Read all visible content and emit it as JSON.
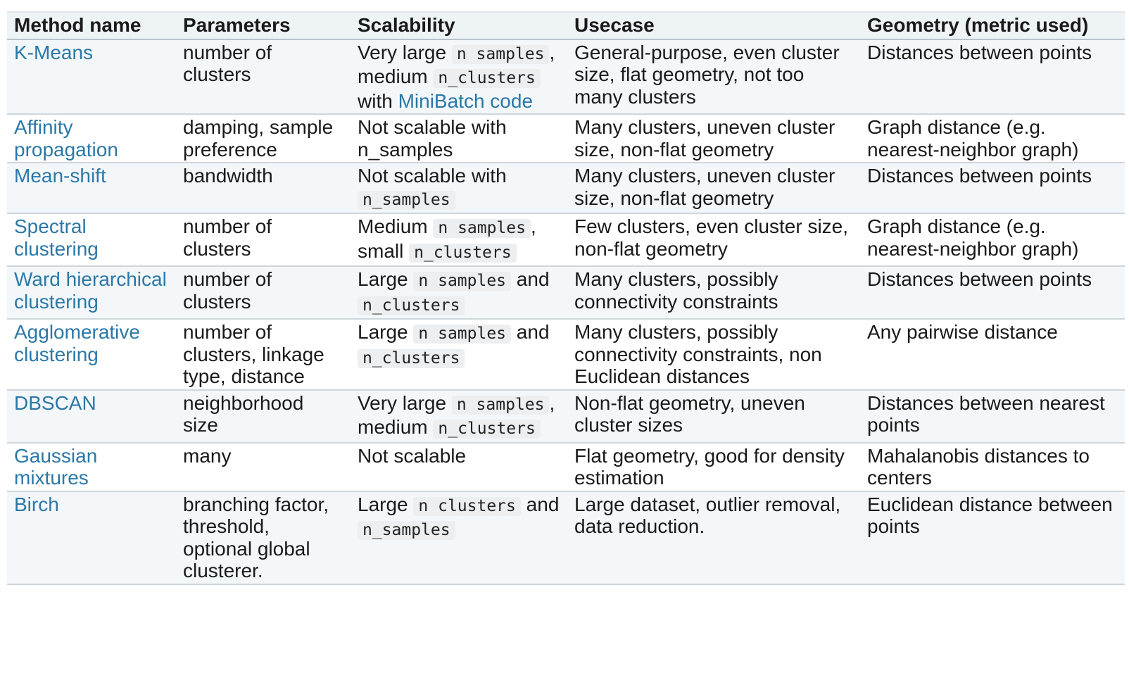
{
  "headers": [
    "Method name",
    "Parameters",
    "Scalability",
    "Usecase",
    "Geometry (metric used)"
  ],
  "rows": [
    {
      "method": "K-Means",
      "parameters": "number of clusters",
      "scal": [
        "Very large ",
        "n samples",
        ", medium ",
        "n_clusters",
        " with ",
        "MiniBatch code"
      ],
      "usecase": "General-purpose, even cluster size, flat geometry, not too many clusters",
      "geometry": "Distances between points"
    },
    {
      "method": "Affinity propagation",
      "parameters": "damping, sample preference",
      "scal": [
        "Not scalable with n_samples"
      ],
      "usecase": "Many clusters, uneven cluster size, non-flat geometry",
      "geometry": "Graph distance (e.g. nearest-neighbor graph)"
    },
    {
      "method": "Mean-shift",
      "parameters": "bandwidth",
      "scal": [
        "Not scalable with ",
        "n_samples"
      ],
      "usecase": "Many clusters, uneven cluster size, non-flat geometry",
      "geometry": "Distances between points"
    },
    {
      "method": "Spectral clustering",
      "parameters": "number of clusters",
      "scal": [
        "Medium ",
        "n samples",
        ", small ",
        "n_clusters"
      ],
      "usecase": "Few clusters, even cluster size, non-flat geometry",
      "geometry": "Graph distance (e.g. nearest-neighbor graph)"
    },
    {
      "method": "Ward hierarchical clustering",
      "parameters": "number of clusters",
      "scal": [
        "Large ",
        "n samples",
        " and ",
        "n_clusters"
      ],
      "usecase": "Many clusters, possibly connectivity constraints",
      "geometry": "Distances between points"
    },
    {
      "method": "Agglomerative clustering",
      "parameters": "number of clusters, linkage type, distance",
      "scal": [
        "Large ",
        "n samples",
        " and ",
        "n_clusters"
      ],
      "usecase": "Many clusters, possibly connectivity constraints, non Euclidean distances",
      "geometry": "Any pairwise distance"
    },
    {
      "method": "DBSCAN",
      "parameters": "neighborhood size",
      "scal": [
        "Very large ",
        "n samples",
        ", medium ",
        "n_clusters"
      ],
      "usecase": "Non-flat geometry, uneven cluster sizes",
      "geometry": "Distances between nearest points"
    },
    {
      "method": "Gaussian mixtures",
      "parameters": "many",
      "scal": [
        "Not scalable"
      ],
      "usecase": "Flat geometry, good for density estimation",
      "geometry": "Mahalanobis distances to centers"
    },
    {
      "method": "Birch",
      "parameters": "branching factor, threshold, optional global clusterer.",
      "scal": [
        "Large ",
        "n clusters",
        " and ",
        "n_samples"
      ],
      "usecase": "Large dataset, outlier removal, data reduction.",
      "geometry": "Euclidean distance between points"
    }
  ]
}
